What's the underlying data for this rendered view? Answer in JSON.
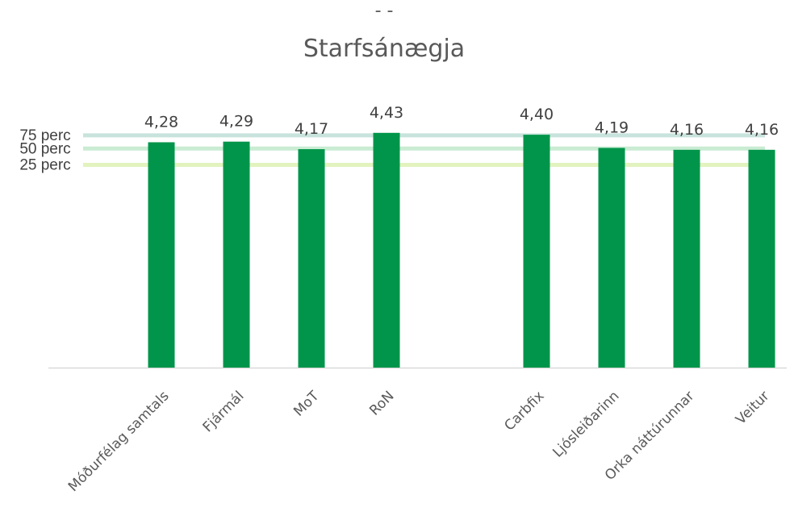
{
  "chart_data": {
    "type": "bar",
    "title": "Starfsánægja",
    "top_mark": "- -",
    "categories": [
      "Móðurfélag samtals",
      "Fjármál",
      "MoT",
      "RoN",
      "Carbfix",
      "Ljósleiðarinn",
      "Orka náttúrunnar",
      "Veitur"
    ],
    "category_groups": [
      [
        0,
        1,
        2,
        3
      ],
      [
        4,
        5,
        6,
        7
      ]
    ],
    "values": [
      4.28,
      4.29,
      4.17,
      4.43,
      4.4,
      4.19,
      4.16,
      4.16
    ],
    "value_labels": [
      "4,28",
      "4,29",
      "4,17",
      "4,43",
      "4,40",
      "4,19",
      "4,16",
      "4,16"
    ],
    "reference_lines": [
      {
        "label": "75 perc",
        "value": 4.39,
        "color": "#c8e3dc"
      },
      {
        "label": "50 perc",
        "value": 4.18,
        "color": "#c9ecd3"
      },
      {
        "label": "25 perc",
        "value": 3.92,
        "color": "#e2f3bf"
      }
    ],
    "ylim": [
      0.69,
      4.62
    ],
    "bar_color": "#00954a",
    "axis_color": "#d9d9d9",
    "grid": false,
    "legend": "none",
    "xlabel": "",
    "ylabel": ""
  }
}
